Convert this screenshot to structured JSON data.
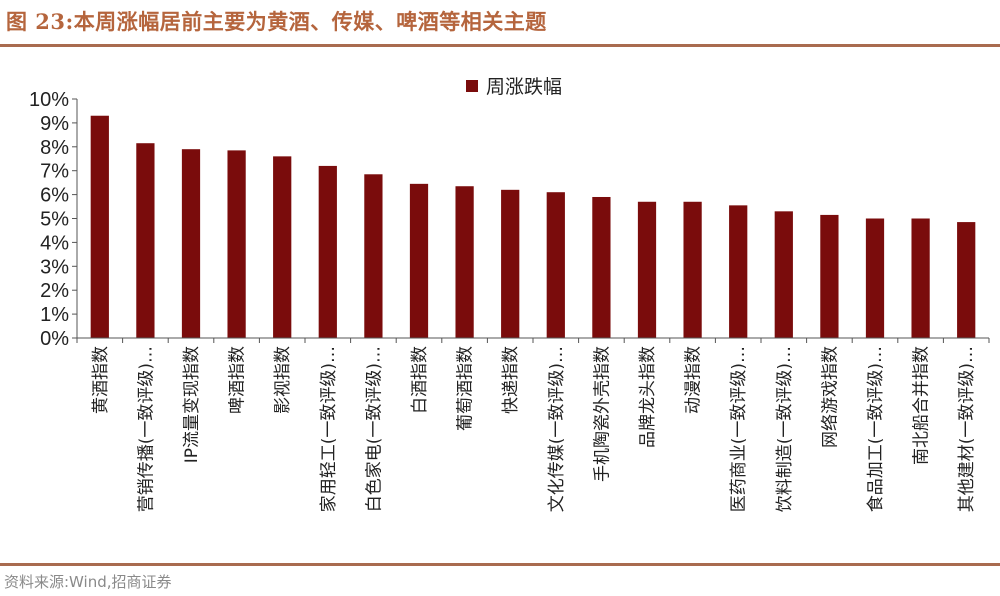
{
  "figure_title": "图 23:本周涨幅居前主要为黄酒、传媒、啤酒等相关主题",
  "source": "资料来源:Wind,招商证券",
  "colors": {
    "bar": "#7a0c0c",
    "accent": "#a96b4f",
    "title": "#b5653d"
  },
  "chart_data": {
    "type": "bar",
    "title": "",
    "xlabel": "",
    "ylabel": "",
    "ylim": [
      0,
      10
    ],
    "yticks": [
      "0%",
      "1%",
      "2%",
      "3%",
      "4%",
      "5%",
      "6%",
      "7%",
      "8%",
      "9%",
      "10%"
    ],
    "legend": {
      "label": "周涨跌幅",
      "position": "top-right"
    },
    "grid": false,
    "categories": [
      "黄酒指数",
      "营销传播(一致评级)…",
      "IP流量变现指数",
      "啤酒指数",
      "影视指数",
      "家用轻工(一致评级)…",
      "白色家电(一致评级)…",
      "白酒指数",
      "葡萄酒指数",
      "快递指数",
      "文化传媒(一致评级)…",
      "手机陶瓷外壳指数",
      "品牌龙头指数",
      "动漫指数",
      "医药商业(一致评级)…",
      "饮料制造(一致评级)…",
      "网络游戏指数",
      "食品加工(一致评级)…",
      "南北船合并指数",
      "其他建材(一致评级)…"
    ],
    "series": [
      {
        "name": "周涨跌幅",
        "values": [
          9.3,
          8.15,
          7.9,
          7.85,
          7.6,
          7.2,
          6.85,
          6.45,
          6.35,
          6.2,
          6.1,
          5.9,
          5.7,
          5.7,
          5.55,
          5.3,
          5.15,
          5.0,
          5.0,
          4.85
        ]
      }
    ]
  }
}
